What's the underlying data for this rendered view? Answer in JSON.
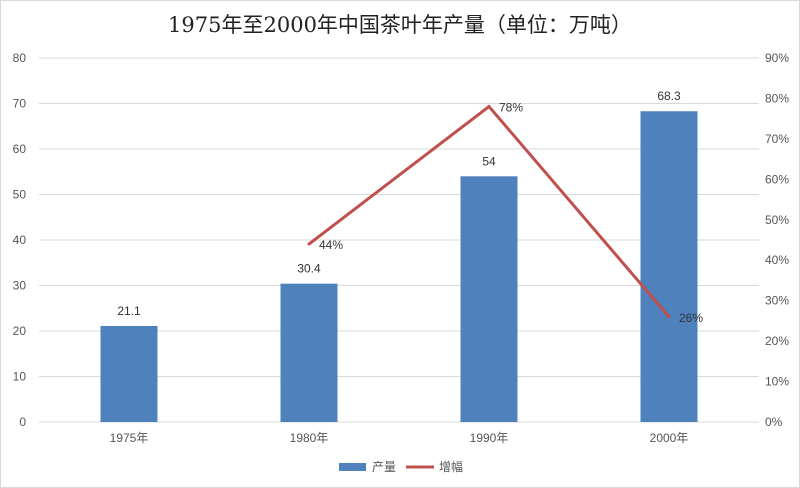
{
  "chart_data": {
    "type": "bar",
    "title": "1975年至2000年中国茶叶年产量（单位：万吨）",
    "categories": [
      "1975年",
      "1980年",
      "1990年",
      "2000年"
    ],
    "series": [
      {
        "name": "产量",
        "type": "bar",
        "axis": "left",
        "color": "#4f81bd",
        "values": [
          21.1,
          30.4,
          54,
          68.3
        ],
        "labels": [
          "21.1",
          "30.4",
          "54",
          "68.3"
        ]
      },
      {
        "name": "增幅",
        "type": "line",
        "axis": "right",
        "color": "#c0504d",
        "values": [
          null,
          44,
          78,
          26
        ],
        "labels": [
          "",
          "44%",
          "78%",
          "26%"
        ]
      }
    ],
    "y_left": {
      "min": 0,
      "max": 80,
      "step": 10,
      "tick_labels": [
        "0",
        "10",
        "20",
        "30",
        "40",
        "50",
        "60",
        "70",
        "80"
      ]
    },
    "y_right": {
      "min": 0,
      "max": 90,
      "step": 10,
      "tick_labels": [
        "0%",
        "10%",
        "20%",
        "30%",
        "40%",
        "50%",
        "60%",
        "70%",
        "80%",
        "90%"
      ]
    },
    "grid": true,
    "legend": "bottom"
  }
}
